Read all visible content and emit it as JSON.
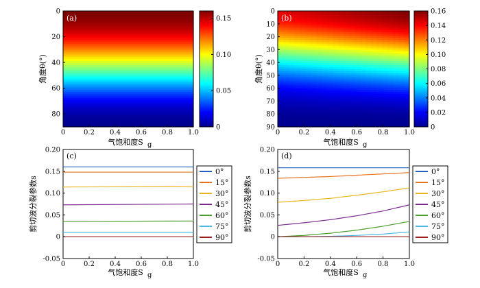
{
  "chart_data": [
    {
      "id": "a",
      "type": "heatmap",
      "panel_label": "(a)",
      "xlabel": "气饱和度S",
      "xlabel_sub": "g",
      "ylabel": "角度θ(°)",
      "xlim": [
        0,
        1.0
      ],
      "ylim": [
        90,
        0
      ],
      "xticks": [
        "0",
        "0.2",
        "0.4",
        "0.6",
        "0.8",
        "1.0"
      ],
      "yticks": [
        "0",
        "20",
        "40",
        "60",
        "80"
      ],
      "colorbar": {
        "range": [
          0,
          0.16
        ],
        "ticks": [
          "0",
          "0.05",
          "0.10",
          "0.15"
        ],
        "tick_values": [
          0,
          0.05,
          0.1,
          0.15
        ]
      },
      "pattern": "horizontal bands: value depends only on angle, max ~0.16 at 0°, 0 at 90°"
    },
    {
      "id": "b",
      "type": "heatmap",
      "panel_label": "(b)",
      "xlabel": "气饱和度S",
      "xlabel_sub": "g",
      "ylabel": "角度θ(°)",
      "xlim": [
        0,
        1.0
      ],
      "ylim": [
        90,
        0
      ],
      "xticks": [
        "0",
        "0.2",
        "0.4",
        "0.6",
        "0.8",
        "1.0"
      ],
      "yticks": [
        "0",
        "10",
        "20",
        "30",
        "40",
        "50",
        "60",
        "70",
        "80",
        "90"
      ],
      "colorbar": {
        "range": [
          0,
          0.16
        ],
        "ticks": [
          "0",
          "0.02",
          "0.04",
          "0.06",
          "0.08",
          "0.10",
          "0.12",
          "0.14",
          "0.16"
        ],
        "tick_values": [
          0,
          0.02,
          0.04,
          0.06,
          0.08,
          0.1,
          0.12,
          0.14,
          0.16
        ]
      },
      "pattern": "bands curve downward with increasing gas saturation"
    },
    {
      "id": "c",
      "type": "line",
      "panel_label": "(c)",
      "xlabel": "气饱和度S",
      "xlabel_sub": "g",
      "ylabel": "剪切波分裂参数s",
      "xlim": [
        0,
        1.0
      ],
      "ylim": [
        -0.05,
        0.2
      ],
      "xticks": [
        "0",
        "0.2",
        "0.4",
        "0.6",
        "0.8",
        "1.0"
      ],
      "yticks": [
        "-0.05",
        "0",
        "0.05",
        "0.10",
        "0.15",
        "0.20"
      ],
      "x": [
        0,
        1.0
      ],
      "series": [
        {
          "name": "0°",
          "color": "#1f5fbf",
          "values": [
            0.16,
            0.16
          ]
        },
        {
          "name": "15°",
          "color": "#e8731f",
          "values": [
            0.148,
            0.148
          ]
        },
        {
          "name": "30°",
          "color": "#e8b51f",
          "values": [
            0.114,
            0.115
          ]
        },
        {
          "name": "45°",
          "color": "#7b2a8f",
          "values": [
            0.073,
            0.075
          ]
        },
        {
          "name": "60°",
          "color": "#4a9e2a",
          "values": [
            0.035,
            0.036
          ]
        },
        {
          "name": "75°",
          "color": "#4fb8e6",
          "values": [
            0.01,
            0.01
          ]
        },
        {
          "name": "90°",
          "color": "#9e1f1f",
          "values": [
            0.0,
            0.0
          ]
        }
      ]
    },
    {
      "id": "d",
      "type": "line",
      "panel_label": "(d)",
      "xlabel": "气饱和度S",
      "xlabel_sub": "g",
      "ylabel": "剪切波分裂参数s",
      "xlim": [
        0,
        1.0
      ],
      "ylim": [
        -0.05,
        0.2
      ],
      "xticks": [
        "0",
        "0.2",
        "0.4",
        "0.6",
        "0.8",
        "1.0"
      ],
      "yticks": [
        "-0.05",
        "0",
        "0.05",
        "0.10",
        "0.15",
        "0.20"
      ],
      "x": [
        0,
        0.2,
        0.4,
        0.6,
        0.8,
        1.0
      ],
      "series": [
        {
          "name": "0°",
          "color": "#1f5fbf",
          "values": [
            0.158,
            0.158,
            0.158,
            0.158,
            0.158,
            0.158
          ]
        },
        {
          "name": "15°",
          "color": "#e8731f",
          "values": [
            0.134,
            0.136,
            0.138,
            0.141,
            0.144,
            0.147
          ]
        },
        {
          "name": "30°",
          "color": "#e8b51f",
          "values": [
            0.079,
            0.083,
            0.088,
            0.095,
            0.103,
            0.112
          ]
        },
        {
          "name": "45°",
          "color": "#7b2a8f",
          "values": [
            0.026,
            0.032,
            0.039,
            0.048,
            0.059,
            0.073
          ]
        },
        {
          "name": "60°",
          "color": "#4a9e2a",
          "values": [
            0.0,
            0.003,
            0.008,
            0.015,
            0.024,
            0.035
          ]
        },
        {
          "name": "75°",
          "color": "#4fb8e6",
          "values": [
            0.0,
            0.0,
            0.001,
            0.003,
            0.006,
            0.011
          ]
        },
        {
          "name": "90°",
          "color": "#9e1f1f",
          "values": [
            0.0,
            0.0,
            0.0,
            0.0,
            0.0,
            0.0
          ]
        }
      ]
    }
  ]
}
